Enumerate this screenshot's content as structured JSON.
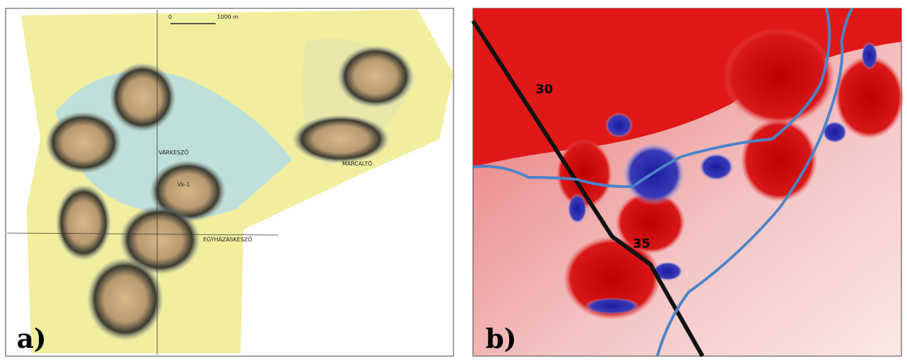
{
  "panels": [
    {
      "label": "a)",
      "scale": {
        "start": "0",
        "end": "1000 m"
      },
      "places": [
        "VÁRKESZŐ",
        "Vk-1",
        "MARCALTŐ",
        "EGYHÁZASKESZŐ"
      ]
    },
    {
      "label": "b)",
      "contour_labels": [
        "30",
        "35"
      ]
    }
  ]
}
